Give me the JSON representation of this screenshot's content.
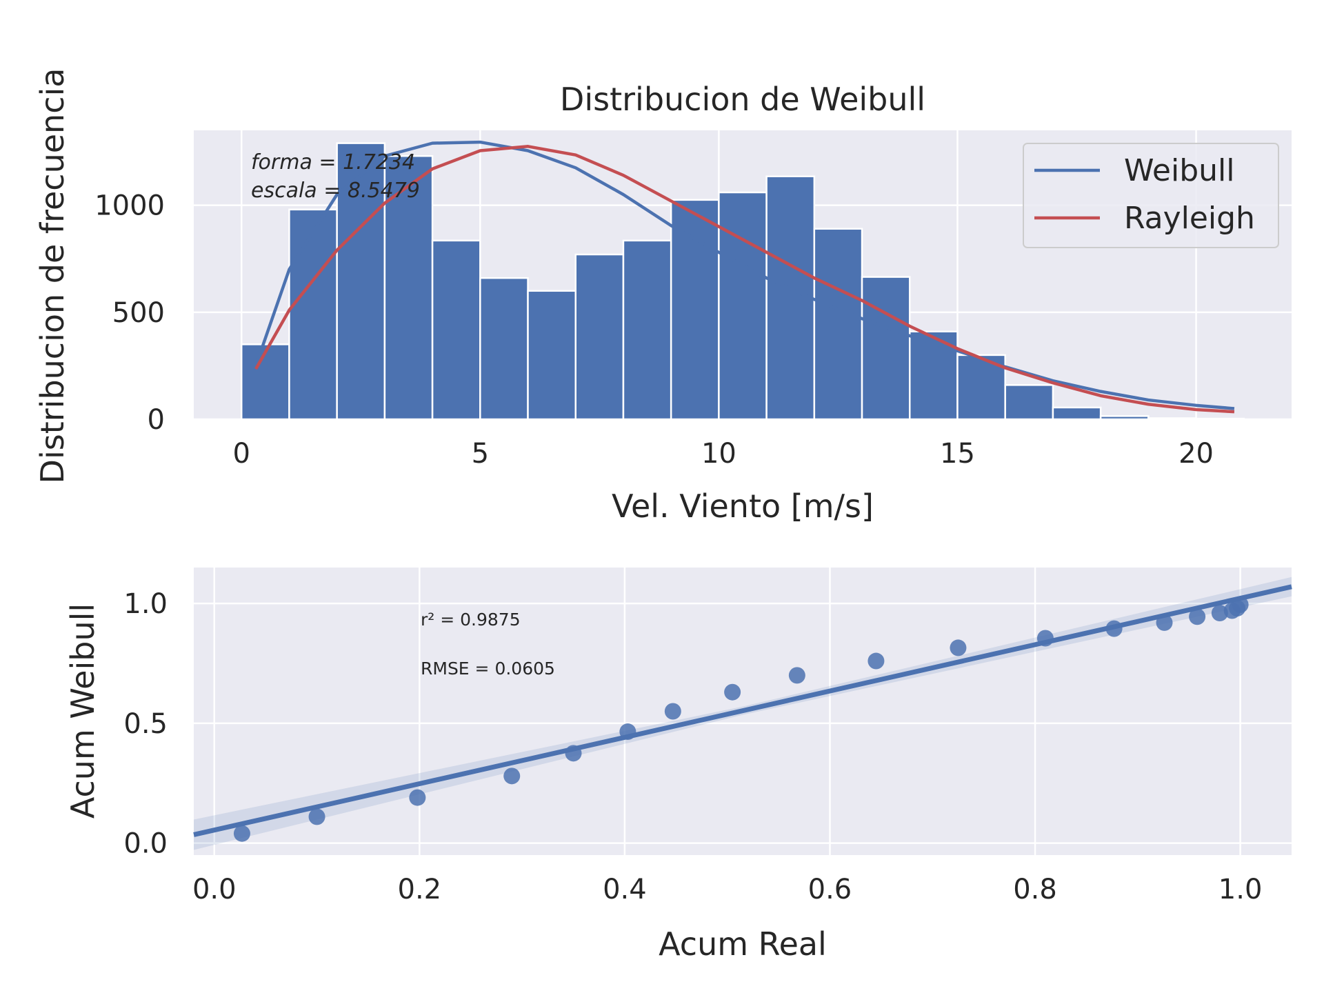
{
  "chart_data": [
    {
      "type": "bar",
      "title": "Distribucion de Weibull",
      "xlabel": "Vel. Viento [m/s]",
      "ylabel": "Distribucion de frecuencia",
      "xlim": [
        -1.0,
        22.0
      ],
      "ylim": [
        0,
        1350
      ],
      "xticks": [
        0,
        5,
        10,
        15,
        20
      ],
      "yticks": [
        0,
        500,
        1000
      ],
      "grid": true,
      "legend_position": "top-right",
      "bin_edges": [
        0,
        1,
        2,
        3,
        4,
        5,
        6,
        7,
        8,
        9,
        10,
        11,
        12,
        13,
        14,
        15,
        16,
        17,
        18,
        19,
        20,
        21
      ],
      "values": [
        350,
        980,
        1290,
        1230,
        835,
        660,
        600,
        770,
        835,
        1025,
        1060,
        1135,
        890,
        665,
        410,
        300,
        160,
        55,
        15,
        5,
        3
      ],
      "series": [
        {
          "name": "Weibull",
          "color": "#4c72b0",
          "x": [
            0.3,
            1,
            2,
            3,
            4,
            5,
            6,
            7,
            8,
            9,
            10,
            11,
            12,
            13,
            14,
            15,
            16,
            17,
            18,
            19,
            20,
            20.8
          ],
          "y": [
            250,
            700,
            1050,
            1230,
            1290,
            1295,
            1255,
            1175,
            1050,
            905,
            780,
            660,
            560,
            470,
            390,
            320,
            245,
            180,
            130,
            90,
            65,
            50
          ]
        },
        {
          "name": "Rayleigh",
          "color": "#c44e52",
          "x": [
            0.3,
            1,
            2,
            3,
            4,
            5,
            6,
            7,
            8,
            9,
            10,
            11,
            12,
            13,
            14,
            15,
            16,
            17,
            18,
            19,
            20,
            20.8
          ],
          "y": [
            235,
            510,
            790,
            1010,
            1170,
            1255,
            1275,
            1235,
            1140,
            1020,
            900,
            780,
            660,
            555,
            435,
            330,
            240,
            170,
            110,
            70,
            45,
            35
          ]
        }
      ],
      "annotations": [
        {
          "text": "forma = 1.7234",
          "x": 0.2,
          "y": 1195
        },
        {
          "text": "escala = 8.5479",
          "x": 0.2,
          "y": 1065
        }
      ]
    },
    {
      "type": "scatter",
      "xlabel": "Acum Real",
      "ylabel": "Acum Weibull",
      "xlim": [
        -0.02,
        1.05
      ],
      "ylim": [
        -0.05,
        1.15
      ],
      "xticks": [
        0.0,
        0.2,
        0.4,
        0.6,
        0.8,
        1.0
      ],
      "yticks": [
        0.0,
        0.5,
        1.0
      ],
      "grid": true,
      "color": "#4c72b0",
      "points": {
        "x": [
          0.027,
          0.1,
          0.198,
          0.29,
          0.35,
          0.403,
          0.447,
          0.505,
          0.568,
          0.645,
          0.725,
          0.81,
          0.877,
          0.926,
          0.958,
          0.98,
          0.992,
          0.997,
          1.0
        ],
        "y": [
          0.04,
          0.11,
          0.19,
          0.28,
          0.375,
          0.465,
          0.55,
          0.63,
          0.7,
          0.76,
          0.815,
          0.855,
          0.895,
          0.92,
          0.945,
          0.96,
          0.97,
          0.98,
          0.995
        ]
      },
      "fit_line": {
        "x": [
          -0.02,
          1.05
        ],
        "y": [
          0.035,
          1.07
        ]
      },
      "annotations": [
        {
          "text": "r² = 0.9875",
          "x": 0.2,
          "y": 0.9
        },
        {
          "text": "RMSE = 0.0605",
          "x": 0.2,
          "y": 0.7
        }
      ]
    }
  ]
}
